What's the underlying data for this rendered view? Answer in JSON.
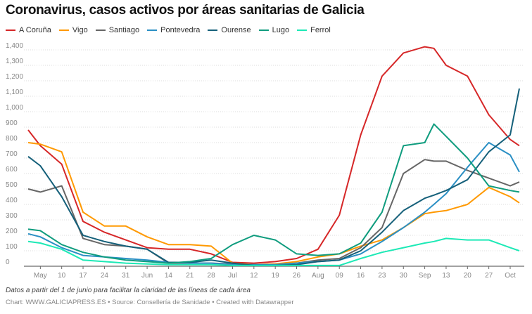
{
  "chart_data": {
    "type": "line",
    "title": "Coronavirus, casos activos por áreas sanitarias de Galicia",
    "xlabel": "",
    "ylabel": "",
    "ylim": [
      0,
      1400
    ],
    "yticks": [
      "0",
      "100",
      "200",
      "300",
      "400",
      "500",
      "600",
      "700",
      "800",
      "900",
      "1,000",
      "1,100",
      "1,200",
      "1,300",
      "1,400"
    ],
    "xticks": [
      {
        "date": "2020-05-03",
        "label": "May"
      },
      {
        "date": "2020-05-10",
        "label": "10"
      },
      {
        "date": "2020-05-17",
        "label": "17"
      },
      {
        "date": "2020-05-24",
        "label": "24"
      },
      {
        "date": "2020-05-31",
        "label": "31"
      },
      {
        "date": "2020-06-07",
        "label": "Jun"
      },
      {
        "date": "2020-06-14",
        "label": "14"
      },
      {
        "date": "2020-06-21",
        "label": "21"
      },
      {
        "date": "2020-06-28",
        "label": "28"
      },
      {
        "date": "2020-07-05",
        "label": "Jul"
      },
      {
        "date": "2020-07-12",
        "label": "12"
      },
      {
        "date": "2020-07-19",
        "label": "19"
      },
      {
        "date": "2020-07-26",
        "label": "26"
      },
      {
        "date": "2020-08-02",
        "label": "Aug"
      },
      {
        "date": "2020-08-09",
        "label": "09"
      },
      {
        "date": "2020-08-16",
        "label": "16"
      },
      {
        "date": "2020-08-23",
        "label": "23"
      },
      {
        "date": "2020-08-30",
        "label": "30"
      },
      {
        "date": "2020-09-06",
        "label": "Sep"
      },
      {
        "date": "2020-09-13",
        "label": "13"
      },
      {
        "date": "2020-09-20",
        "label": "20"
      },
      {
        "date": "2020-09-27",
        "label": "27"
      },
      {
        "date": "2020-10-04",
        "label": "Oct"
      }
    ],
    "grid": true,
    "legend": "top-left",
    "x": [
      "2020-04-29",
      "2020-05-03",
      "2020-05-10",
      "2020-05-17",
      "2020-05-24",
      "2020-05-31",
      "2020-06-07",
      "2020-06-14",
      "2020-06-21",
      "2020-06-28",
      "2020-07-05",
      "2020-07-12",
      "2020-07-19",
      "2020-07-26",
      "2020-08-02",
      "2020-08-09",
      "2020-08-16",
      "2020-08-23",
      "2020-08-30",
      "2020-09-06",
      "2020-09-09",
      "2020-09-13",
      "2020-09-20",
      "2020-09-27",
      "2020-10-04",
      "2020-10-07"
    ],
    "series": [
      {
        "name": "A Coruña",
        "color": "#d62728",
        "values": [
          882,
          780,
          660,
          290,
          220,
          170,
          120,
          110,
          110,
          80,
          25,
          20,
          30,
          50,
          110,
          330,
          850,
          1230,
          1380,
          1420,
          1410,
          1300,
          1230,
          980,
          820,
          780
        ]
      },
      {
        "name": "Vigo",
        "color": "#ff9900",
        "values": [
          800,
          790,
          740,
          350,
          260,
          260,
          190,
          140,
          140,
          130,
          20,
          10,
          15,
          30,
          60,
          80,
          130,
          170,
          250,
          340,
          350,
          360,
          400,
          510,
          450,
          410
        ]
      },
      {
        "name": "Santiago",
        "color": "#666666",
        "values": [
          500,
          480,
          520,
          180,
          140,
          130,
          110,
          20,
          20,
          20,
          15,
          10,
          10,
          20,
          40,
          50,
          120,
          250,
          600,
          690,
          680,
          680,
          620,
          570,
          520,
          545
        ]
      },
      {
        "name": "Pontevedra",
        "color": "#2a8fc4",
        "values": [
          210,
          190,
          120,
          70,
          60,
          50,
          40,
          25,
          20,
          20,
          10,
          10,
          10,
          20,
          30,
          40,
          80,
          160,
          250,
          350,
          400,
          470,
          640,
          800,
          720,
          610
        ]
      },
      {
        "name": "Ourense",
        "color": "#15607a",
        "values": [
          710,
          650,
          450,
          200,
          160,
          130,
          110,
          25,
          25,
          40,
          20,
          5,
          5,
          10,
          30,
          40,
          100,
          220,
          360,
          440,
          460,
          490,
          560,
          740,
          850,
          1150
        ]
      },
      {
        "name": "Lugo",
        "color": "#0f9c7e",
        "values": [
          240,
          230,
          140,
          90,
          60,
          40,
          30,
          20,
          30,
          50,
          140,
          200,
          170,
          80,
          70,
          80,
          150,
          350,
          780,
          800,
          920,
          840,
          700,
          520,
          490,
          480
        ]
      },
      {
        "name": "Ferrol",
        "color": "#1de9b6",
        "values": [
          160,
          150,
          110,
          40,
          30,
          20,
          15,
          10,
          10,
          10,
          5,
          5,
          5,
          5,
          5,
          5,
          50,
          90,
          120,
          150,
          160,
          180,
          170,
          170,
          120,
          100
        ]
      }
    ]
  },
  "note": "Datos a partir del 1 de junio para facilitar la claridad de las líneas de cada área",
  "credit": "Chart: WWW.GALICIAPRESS.ES • Source: Consellería de Sanidade • Created with Datawrapper"
}
